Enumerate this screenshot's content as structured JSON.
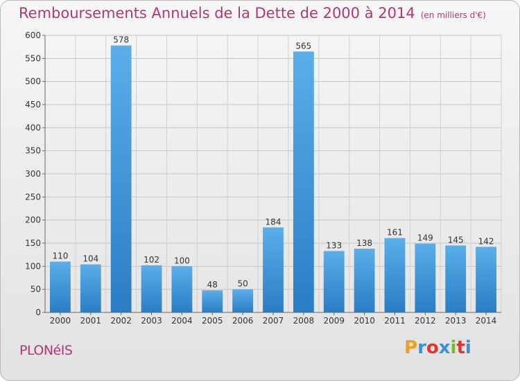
{
  "header": {
    "title": "Remboursements Annuels de la Dette de 2000 à 2014",
    "unit": "(en milliers d'€)"
  },
  "footer": {
    "commune": "PLONéIS",
    "logo": "Proxiti",
    "logo_colors": [
      "#f0a11c",
      "#3a8fd6",
      "#e8352b",
      "#3a8fd6",
      "#7ab82e",
      "#e8352b",
      "#3a8fd6"
    ]
  },
  "chart_data": {
    "type": "bar",
    "categories": [
      "2000",
      "2001",
      "2002",
      "2003",
      "2004",
      "2005",
      "2006",
      "2007",
      "2008",
      "2009",
      "2010",
      "2011",
      "2012",
      "2013",
      "2014"
    ],
    "values": [
      110,
      104,
      578,
      102,
      100,
      48,
      50,
      184,
      565,
      133,
      138,
      161,
      149,
      145,
      142
    ],
    "data_labels": [
      "110",
      "104",
      "578",
      "102",
      "100",
      "48",
      "50",
      "184",
      "565",
      "133",
      "138",
      "161",
      "149",
      "145",
      "142"
    ],
    "yticks": [
      "0",
      "50",
      "100",
      "150",
      "200",
      "250",
      "300",
      "350",
      "400",
      "450",
      "500",
      "550",
      "600"
    ],
    "ylim": [
      0,
      600
    ],
    "grid": true,
    "bar_color_top": "#5aaee9",
    "bar_color_bottom": "#2a7dc4",
    "title": "Remboursements Annuels de la Dette de 2000 à 2014"
  }
}
